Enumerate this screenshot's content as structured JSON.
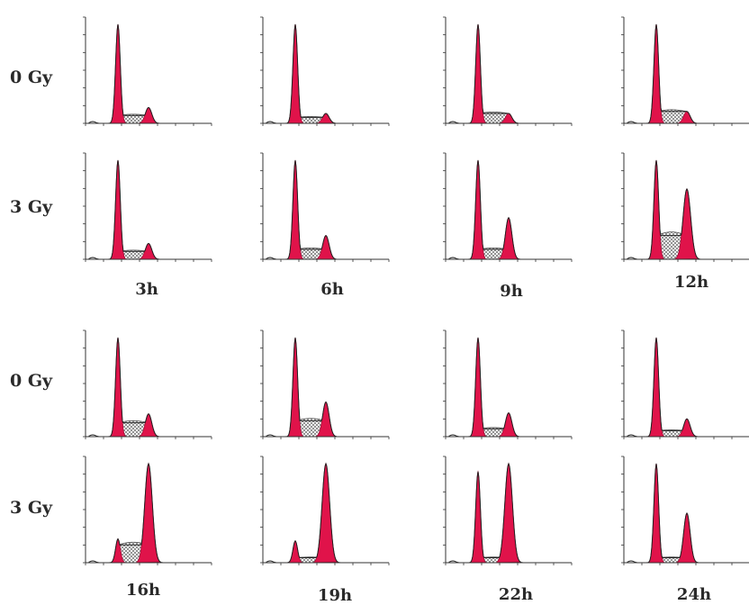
{
  "row_labels": {
    "r1": "0 Gy",
    "r2": "3 Gy",
    "r3": "0 Gy",
    "r4": "3 Gy"
  },
  "time_labels": {
    "t1": "3h",
    "t2": "6h",
    "t3": "9h",
    "t4": "12h",
    "t5": "16h",
    "t6": "19h",
    "t7": "22h",
    "t8": "24h"
  },
  "colors": {
    "peak_fill": "#e0134a",
    "peak_dark": "#a80d36",
    "axis": "#333333",
    "hatch": "#555555"
  },
  "chart_data": [
    {
      "type": "area",
      "dose": "0 Gy",
      "time": "3h",
      "g1_height": 1.0,
      "g2_height": 0.16,
      "s_level": 0.08
    },
    {
      "type": "area",
      "dose": "0 Gy",
      "time": "6h",
      "g1_height": 1.0,
      "g2_height": 0.1,
      "s_level": 0.06
    },
    {
      "type": "area",
      "dose": "0 Gy",
      "time": "9h",
      "g1_height": 1.0,
      "g2_height": 0.1,
      "s_level": 0.1
    },
    {
      "type": "area",
      "dose": "0 Gy",
      "time": "12h",
      "g1_height": 1.0,
      "g2_height": 0.12,
      "s_level": 0.12
    },
    {
      "type": "area",
      "dose": "3 Gy",
      "time": "3h",
      "g1_height": 1.0,
      "g2_height": 0.16,
      "s_level": 0.08
    },
    {
      "type": "area",
      "dose": "3 Gy",
      "time": "6h",
      "g1_height": 1.0,
      "g2_height": 0.24,
      "s_level": 0.1
    },
    {
      "type": "area",
      "dose": "3 Gy",
      "time": "9h",
      "g1_height": 1.0,
      "g2_height": 0.42,
      "s_level": 0.1
    },
    {
      "type": "area",
      "dose": "3 Gy",
      "time": "12h",
      "g1_height": 1.0,
      "g2_height": 0.71,
      "s_level": 0.24
    },
    {
      "type": "area",
      "dose": "0 Gy",
      "time": "16h",
      "g1_height": 1.0,
      "g2_height": 0.23,
      "s_level": 0.14
    },
    {
      "type": "area",
      "dose": "0 Gy",
      "time": "19h",
      "g1_height": 1.0,
      "g2_height": 0.35,
      "s_level": 0.16
    },
    {
      "type": "area",
      "dose": "0 Gy",
      "time": "22h",
      "g1_height": 1.0,
      "g2_height": 0.24,
      "s_level": 0.08
    },
    {
      "type": "area",
      "dose": "0 Gy",
      "time": "24h",
      "g1_height": 1.0,
      "g2_height": 0.18,
      "s_level": 0.06
    },
    {
      "type": "area",
      "dose": "3 Gy",
      "time": "16h",
      "g1_height": 0.24,
      "g2_height": 1.0,
      "s_level": 0.18
    },
    {
      "type": "area",
      "dose": "3 Gy",
      "time": "19h",
      "g1_height": 0.22,
      "g2_height": 1.0,
      "s_level": 0.05
    },
    {
      "type": "area",
      "dose": "3 Gy",
      "time": "22h",
      "g1_height": 0.92,
      "g2_height": 1.0,
      "s_level": 0.05
    },
    {
      "type": "area",
      "dose": "3 Gy",
      "time": "24h",
      "g1_height": 1.0,
      "g2_height": 0.5,
      "s_level": 0.05
    }
  ]
}
